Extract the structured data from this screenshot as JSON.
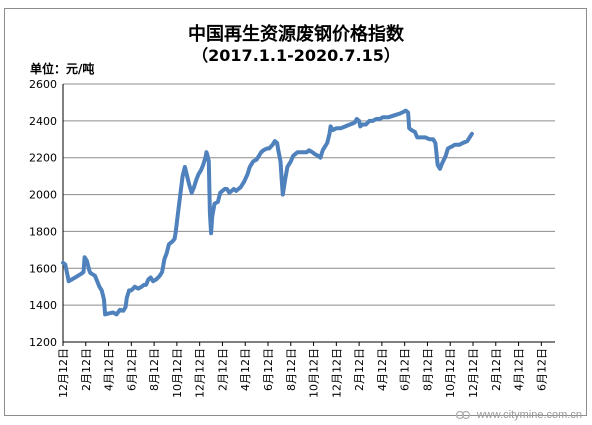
{
  "title": "中国再生资源废钢价格指数",
  "subtitle": "（2017.1.1-2020.7.15）",
  "unit_label": "单位：元/吨",
  "watermark": "www.citymine.com.cn",
  "watermark_logo_text": "CITYMINE",
  "colors": {
    "line": "#4F81BD",
    "grid": "#8c8c8c",
    "axis": "#000000"
  },
  "chart_data": {
    "type": "line",
    "title": "中国再生资源废钢价格指数",
    "subtitle": "（2017.1.1-2020.7.15）",
    "ylabel": "单位：元/吨",
    "ylim": [
      1200,
      2600
    ],
    "yticks": [
      1200,
      1400,
      1600,
      1800,
      2000,
      2200,
      2400,
      2600
    ],
    "grid": true,
    "xlabels": [
      "12月12日",
      "2月12日",
      "4月12日",
      "6月12日",
      "8月12日",
      "10月12日",
      "12月12日",
      "2月12日",
      "4月12日",
      "6月12日",
      "8月12日",
      "10月12日",
      "12月12日",
      "2月12日",
      "4月12日",
      "6月12日",
      "8月12日",
      "10月12日",
      "12月12日",
      "2月12日",
      "4月12日",
      "6月12日"
    ],
    "x_range": [
      0,
      21.6
    ],
    "series": [
      {
        "points": [
          [
            0.0,
            1630
          ],
          [
            0.1,
            1620
          ],
          [
            0.2,
            1560
          ],
          [
            0.25,
            1530
          ],
          [
            0.4,
            1540
          ],
          [
            0.6,
            1555
          ],
          [
            0.8,
            1570
          ],
          [
            0.9,
            1580
          ],
          [
            0.95,
            1660
          ],
          [
            1.05,
            1640
          ],
          [
            1.15,
            1590
          ],
          [
            1.2,
            1575
          ],
          [
            1.4,
            1560
          ],
          [
            1.5,
            1530
          ],
          [
            1.6,
            1500
          ],
          [
            1.7,
            1480
          ],
          [
            1.8,
            1430
          ],
          [
            1.85,
            1350
          ],
          [
            2.0,
            1355
          ],
          [
            2.2,
            1360
          ],
          [
            2.35,
            1350
          ],
          [
            2.5,
            1375
          ],
          [
            2.65,
            1370
          ],
          [
            2.75,
            1390
          ],
          [
            2.8,
            1440
          ],
          [
            2.9,
            1480
          ],
          [
            3.0,
            1480
          ],
          [
            3.15,
            1500
          ],
          [
            3.3,
            1490
          ],
          [
            3.45,
            1500
          ],
          [
            3.55,
            1510
          ],
          [
            3.65,
            1510
          ],
          [
            3.75,
            1540
          ],
          [
            3.85,
            1550
          ],
          [
            3.95,
            1530
          ],
          [
            4.1,
            1540
          ],
          [
            4.25,
            1560
          ],
          [
            4.35,
            1580
          ],
          [
            4.45,
            1650
          ],
          [
            4.55,
            1680
          ],
          [
            4.65,
            1730
          ],
          [
            4.8,
            1745
          ],
          [
            4.9,
            1760
          ],
          [
            4.95,
            1800
          ],
          [
            5.05,
            1900
          ],
          [
            5.15,
            2000
          ],
          [
            5.25,
            2100
          ],
          [
            5.35,
            2150
          ],
          [
            5.45,
            2100
          ],
          [
            5.55,
            2050
          ],
          [
            5.65,
            2010
          ],
          [
            5.75,
            2040
          ],
          [
            5.85,
            2080
          ],
          [
            5.95,
            2110
          ],
          [
            6.05,
            2130
          ],
          [
            6.15,
            2160
          ],
          [
            6.25,
            2200
          ],
          [
            6.3,
            2230
          ],
          [
            6.35,
            2210
          ],
          [
            6.4,
            2180
          ],
          [
            6.45,
            1900
          ],
          [
            6.5,
            1790
          ],
          [
            6.55,
            1880
          ],
          [
            6.65,
            1950
          ],
          [
            6.8,
            1960
          ],
          [
            6.9,
            2010
          ],
          [
            7.0,
            2020
          ],
          [
            7.1,
            2030
          ],
          [
            7.2,
            2030
          ],
          [
            7.3,
            2010
          ],
          [
            7.4,
            2020
          ],
          [
            7.5,
            2030
          ],
          [
            7.6,
            2020
          ],
          [
            7.7,
            2030
          ],
          [
            7.8,
            2040
          ],
          [
            7.95,
            2070
          ],
          [
            8.1,
            2110
          ],
          [
            8.2,
            2150
          ],
          [
            8.35,
            2180
          ],
          [
            8.5,
            2190
          ],
          [
            8.6,
            2210
          ],
          [
            8.7,
            2230
          ],
          [
            8.8,
            2240
          ],
          [
            8.95,
            2250
          ],
          [
            9.05,
            2250
          ],
          [
            9.2,
            2270
          ],
          [
            9.3,
            2290
          ],
          [
            9.4,
            2280
          ],
          [
            9.45,
            2240
          ],
          [
            9.55,
            2180
          ],
          [
            9.6,
            2080
          ],
          [
            9.65,
            2000
          ],
          [
            9.75,
            2080
          ],
          [
            9.85,
            2150
          ],
          [
            10.0,
            2180
          ],
          [
            10.1,
            2210
          ],
          [
            10.2,
            2220
          ],
          [
            10.3,
            2230
          ],
          [
            10.5,
            2230
          ],
          [
            10.7,
            2230
          ],
          [
            10.8,
            2240
          ],
          [
            10.95,
            2230
          ],
          [
            11.05,
            2220
          ],
          [
            11.2,
            2210
          ],
          [
            11.3,
            2200
          ],
          [
            11.4,
            2240
          ],
          [
            11.5,
            2260
          ],
          [
            11.6,
            2280
          ],
          [
            11.7,
            2330
          ],
          [
            11.75,
            2370
          ],
          [
            11.85,
            2350
          ],
          [
            12.0,
            2360
          ],
          [
            12.2,
            2360
          ],
          [
            12.4,
            2370
          ],
          [
            12.6,
            2380
          ],
          [
            12.8,
            2390
          ],
          [
            12.9,
            2410
          ],
          [
            13.0,
            2400
          ],
          [
            13.05,
            2370
          ],
          [
            13.15,
            2380
          ],
          [
            13.3,
            2380
          ],
          [
            13.45,
            2400
          ],
          [
            13.6,
            2400
          ],
          [
            13.75,
            2410
          ],
          [
            13.9,
            2410
          ],
          [
            14.05,
            2420
          ],
          [
            14.3,
            2420
          ],
          [
            14.55,
            2430
          ],
          [
            14.8,
            2440
          ],
          [
            15.05,
            2455
          ],
          [
            15.15,
            2445
          ],
          [
            15.2,
            2360
          ],
          [
            15.3,
            2350
          ],
          [
            15.45,
            2340
          ],
          [
            15.55,
            2310
          ],
          [
            15.7,
            2310
          ],
          [
            15.9,
            2310
          ],
          [
            16.1,
            2300
          ],
          [
            16.25,
            2300
          ],
          [
            16.35,
            2280
          ],
          [
            16.45,
            2160
          ],
          [
            16.55,
            2140
          ],
          [
            16.65,
            2170
          ],
          [
            16.8,
            2210
          ],
          [
            16.9,
            2250
          ],
          [
            17.05,
            2260
          ],
          [
            17.2,
            2270
          ],
          [
            17.4,
            2270
          ],
          [
            17.55,
            2280
          ],
          [
            17.75,
            2290
          ],
          [
            17.85,
            2310
          ],
          [
            17.95,
            2330
          ]
        ]
      }
    ]
  }
}
